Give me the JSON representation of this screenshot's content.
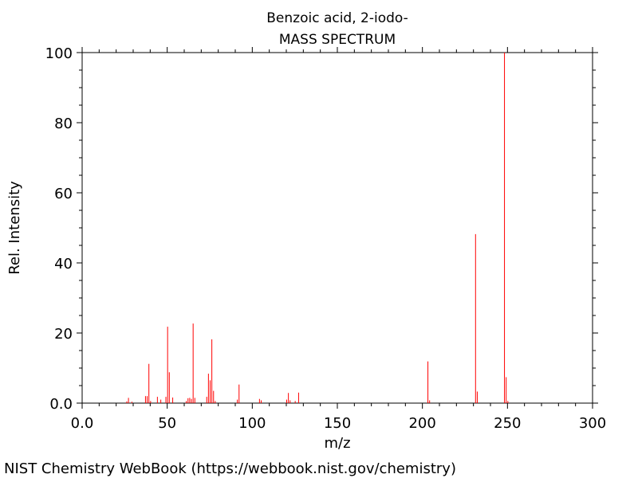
{
  "chart_data": {
    "type": "bar",
    "title": "Benzoic acid, 2-iodo-",
    "subtitle": "MASS SPECTRUM",
    "xlabel": "m/z",
    "ylabel": "Rel. Intensity",
    "xlim": [
      0,
      300
    ],
    "ylim": [
      0,
      100
    ],
    "x_ticks": [
      "0.0",
      "50",
      "100",
      "150",
      "200",
      "250",
      "300"
    ],
    "y_ticks": [
      "0.0",
      "20",
      "40",
      "60",
      "80",
      "100"
    ],
    "grid": false,
    "series": [
      {
        "color": "#ff0000",
        "points": [
          [
            26,
            0.5
          ],
          [
            27,
            1.5
          ],
          [
            29,
            0.4
          ],
          [
            37,
            2.0
          ],
          [
            38,
            2.0
          ],
          [
            39,
            11.2
          ],
          [
            40,
            0.6
          ],
          [
            44,
            1.8
          ],
          [
            46,
            1.0
          ],
          [
            49,
            1.8
          ],
          [
            50,
            21.8
          ],
          [
            51,
            8.8
          ],
          [
            53,
            1.6
          ],
          [
            61,
            0.6
          ],
          [
            62,
            1.4
          ],
          [
            63,
            1.5
          ],
          [
            64,
            1.2
          ],
          [
            65,
            22.7
          ],
          [
            66,
            1.5
          ],
          [
            73,
            1.8
          ],
          [
            74,
            8.4
          ],
          [
            75,
            6.5
          ],
          [
            76,
            18.2
          ],
          [
            77,
            3.5
          ],
          [
            78,
            0.6
          ],
          [
            91,
            1.0
          ],
          [
            92,
            5.3
          ],
          [
            104,
            1.2
          ],
          [
            105,
            0.8
          ],
          [
            120,
            1.0
          ],
          [
            121,
            2.9
          ],
          [
            122,
            0.8
          ],
          [
            125,
            0.6
          ],
          [
            127,
            3.0
          ],
          [
            203,
            11.9
          ],
          [
            204,
            0.8
          ],
          [
            231,
            48.2
          ],
          [
            232,
            3.3
          ],
          [
            248,
            100.0
          ],
          [
            249,
            7.4
          ],
          [
            250,
            0.6
          ]
        ]
      }
    ]
  },
  "footer": "NIST Chemistry WebBook (https://webbook.nist.gov/chemistry)"
}
